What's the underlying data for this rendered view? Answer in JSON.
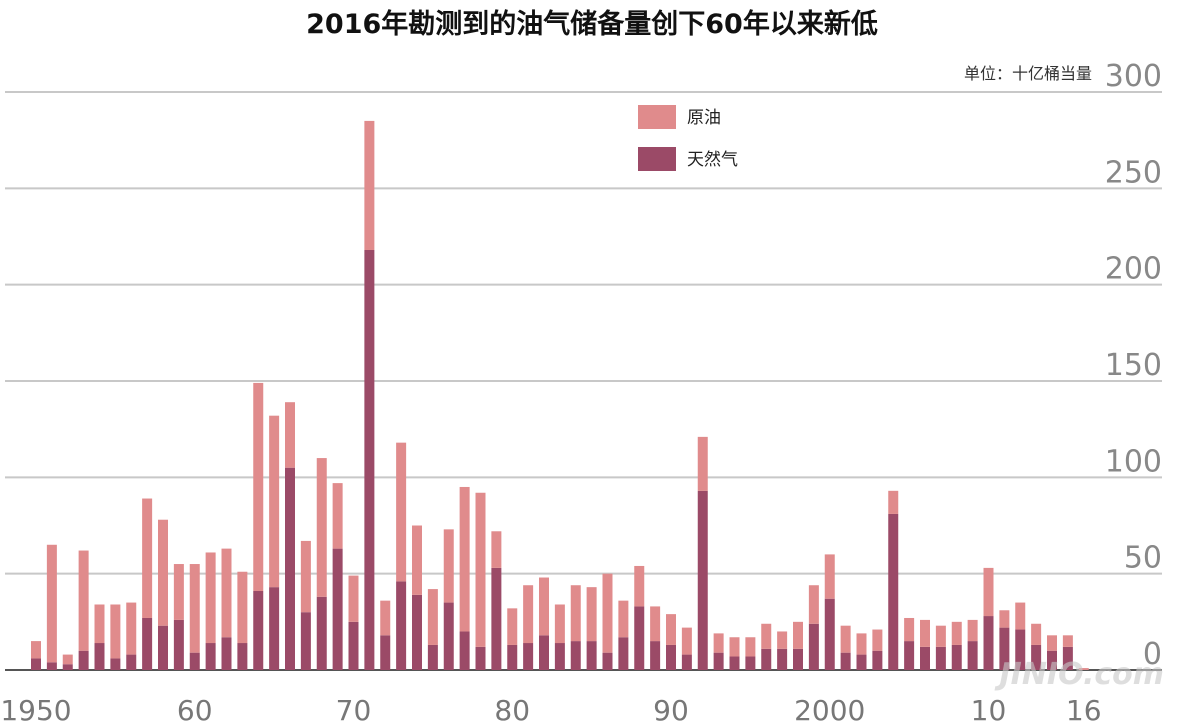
{
  "chart_data": {
    "type": "bar",
    "stacked": true,
    "title": "2016年勘测到的油气储备量创下60年以来新低",
    "unit": "单位：十亿桶当量",
    "years": [
      1950,
      1951,
      1952,
      1953,
      1954,
      1955,
      1956,
      1957,
      1958,
      1959,
      1960,
      1961,
      1962,
      1963,
      1964,
      1965,
      1966,
      1967,
      1968,
      1969,
      1970,
      1971,
      1972,
      1973,
      1974,
      1975,
      1976,
      1977,
      1978,
      1979,
      1980,
      1981,
      1982,
      1983,
      1984,
      1985,
      1986,
      1987,
      1988,
      1989,
      1990,
      1991,
      1992,
      1993,
      1994,
      1995,
      1996,
      1997,
      1998,
      1999,
      2000,
      2001,
      2002,
      2003,
      2004,
      2005,
      2006,
      2007,
      2008,
      2009,
      2010,
      2011,
      2012,
      2013,
      2014,
      2015,
      2016
    ],
    "series": [
      {
        "name": "原油",
        "color": "#e08b8c",
        "values": [
          9,
          61,
          5,
          52,
          20,
          28,
          27,
          62,
          55,
          29,
          46,
          47,
          46,
          37,
          108,
          89,
          34,
          37,
          72,
          34,
          24,
          67,
          18,
          72,
          36,
          29,
          38,
          75,
          80,
          19,
          19,
          30,
          30,
          20,
          29,
          28,
          41,
          19,
          21,
          18,
          16,
          14,
          28,
          10,
          10,
          10,
          13,
          9,
          14,
          20,
          23,
          14,
          11,
          11,
          12,
          12,
          14,
          11,
          12,
          11,
          25,
          9,
          14,
          11,
          8,
          6,
          1
        ],
        "label": "原油"
      },
      {
        "name": "天然气",
        "color": "#9b4a67",
        "values": [
          6,
          4,
          3,
          10,
          14,
          6,
          8,
          27,
          23,
          26,
          9,
          14,
          17,
          14,
          41,
          43,
          105,
          30,
          38,
          63,
          25,
          218,
          18,
          46,
          39,
          13,
          35,
          20,
          12,
          53,
          13,
          14,
          18,
          14,
          15,
          15,
          9,
          17,
          33,
          15,
          13,
          8,
          93,
          9,
          7,
          7,
          11,
          11,
          11,
          24,
          37,
          9,
          8,
          10,
          81,
          15,
          12,
          12,
          13,
          15,
          28,
          22,
          21,
          13,
          10,
          12,
          0
        ]
      }
    ],
    "xticks": [
      {
        "year": 1950,
        "label": "1950"
      },
      {
        "year": 1960,
        "label": "60"
      },
      {
        "year": 1970,
        "label": "70"
      },
      {
        "year": 1980,
        "label": "80"
      },
      {
        "year": 1990,
        "label": "90"
      },
      {
        "year": 2000,
        "label": "2000"
      },
      {
        "year": 2010,
        "label": "10"
      },
      {
        "year": 2016,
        "label": "16"
      }
    ],
    "yticks": [
      0,
      50,
      100,
      150,
      200,
      250,
      300
    ],
    "ylim": [
      0,
      300
    ],
    "grid": true,
    "legend_placement": "top-center",
    "axis_color": "#555555",
    "grid_color": "#c8c8c8"
  },
  "watermark": "JINIO.com"
}
